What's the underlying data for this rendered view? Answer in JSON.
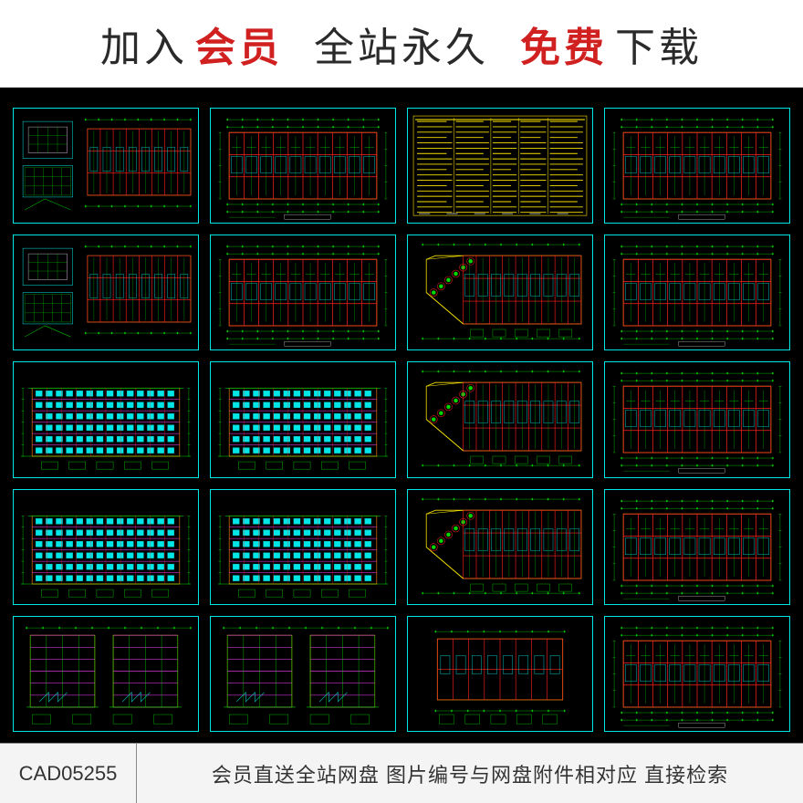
{
  "banner": {
    "parts": [
      {
        "text": "加入",
        "cls": "dark"
      },
      {
        "text": "会员",
        "cls": "red"
      },
      {
        "text": "",
        "cls": "gap"
      },
      {
        "text": "全站永久",
        "cls": "dark"
      },
      {
        "text": "",
        "cls": "gap"
      },
      {
        "text": "免费",
        "cls": "red"
      },
      {
        "text": "下载",
        "cls": "dark"
      }
    ]
  },
  "footer": {
    "code": "CAD05255",
    "text": "会员直送全站网盘  图片编号与网盘附件相对应  直接检索"
  },
  "colors": {
    "border": "#00e5e5",
    "green": "#00d800",
    "red": "#ff2020",
    "yellow": "#f5e000",
    "cyan": "#00e5e5",
    "magenta": "#ff40ff",
    "white": "#ffffff",
    "bg": "#000000"
  },
  "grid": {
    "cols": 4,
    "rows": 5
  },
  "tiles": [
    {
      "type": "plan-detail"
    },
    {
      "type": "floor-plan"
    },
    {
      "type": "data-table"
    },
    {
      "type": "floor-plan"
    },
    {
      "type": "plan-detail"
    },
    {
      "type": "floor-plan"
    },
    {
      "type": "angled-plan"
    },
    {
      "type": "floor-plan"
    },
    {
      "type": "elevation"
    },
    {
      "type": "elevation"
    },
    {
      "type": "angled-plan"
    },
    {
      "type": "floor-plan"
    },
    {
      "type": "elevation"
    },
    {
      "type": "elevation"
    },
    {
      "type": "angled-plan"
    },
    {
      "type": "floor-plan"
    },
    {
      "type": "section"
    },
    {
      "type": "section"
    },
    {
      "type": "floor-plan-small"
    },
    {
      "type": "floor-plan"
    }
  ]
}
